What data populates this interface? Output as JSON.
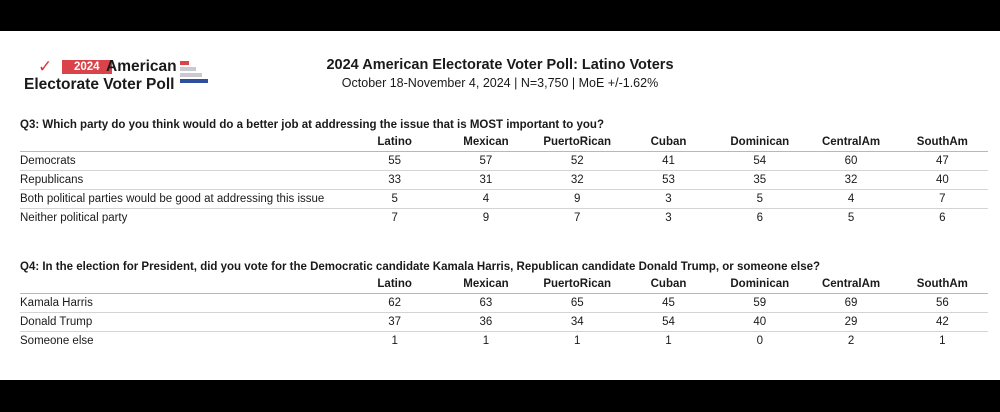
{
  "logo": {
    "year": "2024",
    "line1": "American",
    "line2": "Electorate Voter Poll",
    "check_glyph": "✓",
    "colors": {
      "red": "#d9434a",
      "blue": "#2f4f9c",
      "gray": "#c9cbd1"
    }
  },
  "header": {
    "title": "2024 American Electorate Voter Poll: Latino Voters",
    "subtitle": "October 18-November 4, 2024  |  N=3,750  |  MoE +/-1.62%"
  },
  "columns": [
    "Latino",
    "Mexican",
    "PuertoRican",
    "Cuban",
    "Dominican",
    "CentralAm",
    "SouthAm"
  ],
  "q3": {
    "question": "Q3: Which party do you think would do a better job at addressing the issue that is MOST important to you?",
    "rows": [
      {
        "label": "Democrats",
        "values": [
          "55",
          "57",
          "52",
          "41",
          "54",
          "60",
          "47"
        ]
      },
      {
        "label": "Republicans",
        "values": [
          "33",
          "31",
          "32",
          "53",
          "35",
          "32",
          "40"
        ]
      },
      {
        "label": "Both political parties would be good at addressing this issue",
        "values": [
          "5",
          "4",
          "9",
          "3",
          "5",
          "4",
          "7"
        ]
      },
      {
        "label": "Neither political party",
        "values": [
          "7",
          "9",
          "7",
          "3",
          "6",
          "5",
          "6"
        ]
      }
    ]
  },
  "q4": {
    "question": "Q4: In the election for President, did you vote for the Democratic candidate Kamala Harris, Republican candidate Donald Trump, or someone else?",
    "rows": [
      {
        "label": "Kamala Harris",
        "values": [
          "62",
          "63",
          "65",
          "45",
          "59",
          "69",
          "56"
        ]
      },
      {
        "label": "Donald Trump",
        "values": [
          "37",
          "36",
          "34",
          "54",
          "40",
          "29",
          "42"
        ]
      },
      {
        "label": "Someone else",
        "values": [
          "1",
          "1",
          "1",
          "1",
          "0",
          "2",
          "1"
        ]
      }
    ]
  }
}
